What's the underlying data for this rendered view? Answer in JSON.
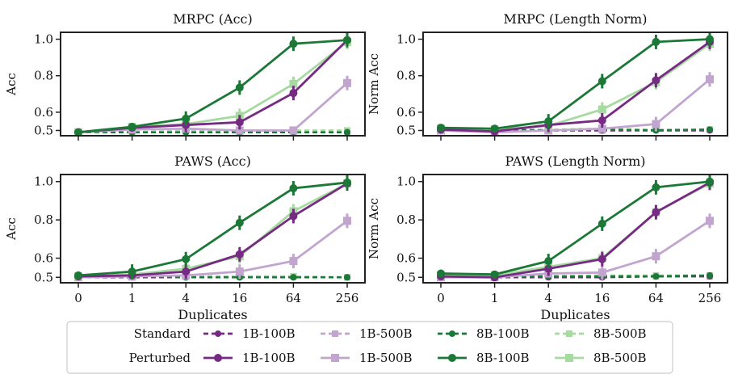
{
  "figure": {
    "x_label": "Duplicates",
    "legend": {
      "row_labels": [
        "Standard",
        "Perturbed"
      ],
      "entries": [
        {
          "label": "1B-100B",
          "color": "#762a83",
          "marker": "circle"
        },
        {
          "label": "1B-500B",
          "color": "#c2a5cf",
          "marker": "square"
        },
        {
          "label": "8B-100B",
          "color": "#1b7837",
          "marker": "circle"
        },
        {
          "label": "8B-500B",
          "color": "#a6dba0",
          "marker": "square"
        }
      ]
    }
  },
  "chart_data": [
    {
      "type": "line",
      "title": "MRPC (Acc)",
      "ylabel": "Acc",
      "xlabel": "",
      "x": [
        "0",
        "1",
        "4",
        "16",
        "64",
        "256"
      ],
      "ylim": [
        0.48,
        1.02
      ],
      "yticks": [
        0.5,
        0.6,
        0.8,
        1.0
      ],
      "yticklabels": [
        "0.5",
        "0.6",
        "0.8",
        "1.0"
      ],
      "series": [
        {
          "name": "1B-100B",
          "style": "Standard",
          "values": [
            0.49,
            0.49,
            0.49,
            0.49,
            0.49,
            0.49
          ]
        },
        {
          "name": "1B-500B",
          "style": "Standard",
          "values": [
            0.49,
            0.49,
            0.495,
            0.49,
            0.495,
            0.495
          ]
        },
        {
          "name": "8B-100B",
          "style": "Standard",
          "values": [
            0.49,
            0.49,
            0.49,
            0.49,
            0.49,
            0.49
          ]
        },
        {
          "name": "8B-500B",
          "style": "Standard",
          "values": [
            0.49,
            0.49,
            0.5,
            0.5,
            0.5,
            0.5
          ]
        },
        {
          "name": "1B-100B",
          "style": "Perturbed",
          "values": [
            0.49,
            0.515,
            0.53,
            0.545,
            0.705,
            0.995
          ]
        },
        {
          "name": "1B-500B",
          "style": "Perturbed",
          "values": [
            0.49,
            0.505,
            0.51,
            0.5,
            0.5,
            0.76
          ]
        },
        {
          "name": "8B-100B",
          "style": "Perturbed",
          "values": [
            0.49,
            0.52,
            0.565,
            0.735,
            0.975,
            0.995
          ]
        },
        {
          "name": "8B-500B",
          "style": "Perturbed",
          "values": [
            0.49,
            0.52,
            0.535,
            0.58,
            0.755,
            0.985
          ]
        }
      ]
    },
    {
      "type": "line",
      "title": "MRPC (Length Norm)",
      "ylabel": "Norm Acc",
      "xlabel": "",
      "x": [
        "0",
        "1",
        "4",
        "16",
        "64",
        "256"
      ],
      "ylim": [
        0.48,
        1.02
      ],
      "yticks": [
        0.5,
        0.6,
        0.8,
        1.0
      ],
      "yticklabels": [
        "0.5",
        "0.6",
        "0.8",
        "1.0"
      ],
      "series": [
        {
          "name": "1B-100B",
          "style": "Standard",
          "values": [
            0.5,
            0.5,
            0.5,
            0.5,
            0.5,
            0.5
          ]
        },
        {
          "name": "1B-500B",
          "style": "Standard",
          "values": [
            0.5,
            0.495,
            0.5,
            0.5,
            0.505,
            0.505
          ]
        },
        {
          "name": "8B-100B",
          "style": "Standard",
          "values": [
            0.505,
            0.5,
            0.5,
            0.505,
            0.5,
            0.505
          ]
        },
        {
          "name": "8B-500B",
          "style": "Standard",
          "values": [
            0.51,
            0.505,
            0.505,
            0.51,
            0.505,
            0.505
          ]
        },
        {
          "name": "1B-100B",
          "style": "Perturbed",
          "values": [
            0.505,
            0.495,
            0.53,
            0.555,
            0.775,
            0.985
          ]
        },
        {
          "name": "1B-500B",
          "style": "Perturbed",
          "values": [
            0.5,
            0.49,
            0.5,
            0.51,
            0.535,
            0.78
          ]
        },
        {
          "name": "8B-100B",
          "style": "Perturbed",
          "values": [
            0.515,
            0.51,
            0.55,
            0.77,
            0.985,
            1.0
          ]
        },
        {
          "name": "8B-500B",
          "style": "Perturbed",
          "values": [
            0.51,
            0.505,
            0.525,
            0.615,
            0.765,
            0.975
          ]
        }
      ]
    },
    {
      "type": "line",
      "title": "PAWS (Acc)",
      "ylabel": "Acc",
      "xlabel": "Duplicates",
      "x": [
        "0",
        "1",
        "4",
        "16",
        "64",
        "256"
      ],
      "ylim": [
        0.48,
        1.02
      ],
      "yticks": [
        0.5,
        0.6,
        0.8,
        1.0
      ],
      "yticklabels": [
        "0.5",
        "0.6",
        "0.8",
        "1.0"
      ],
      "series": [
        {
          "name": "1B-100B",
          "style": "Standard",
          "values": [
            0.5,
            0.5,
            0.5,
            0.5,
            0.5,
            0.5
          ]
        },
        {
          "name": "1B-500B",
          "style": "Standard",
          "values": [
            0.5,
            0.5,
            0.505,
            0.505,
            0.505,
            0.5
          ]
        },
        {
          "name": "8B-100B",
          "style": "Standard",
          "values": [
            0.5,
            0.505,
            0.5,
            0.5,
            0.5,
            0.5
          ]
        },
        {
          "name": "8B-500B",
          "style": "Standard",
          "values": [
            0.5,
            0.505,
            0.505,
            0.505,
            0.505,
            0.5
          ]
        },
        {
          "name": "1B-100B",
          "style": "Perturbed",
          "values": [
            0.505,
            0.51,
            0.53,
            0.62,
            0.82,
            0.99
          ]
        },
        {
          "name": "1B-500B",
          "style": "Perturbed",
          "values": [
            0.5,
            0.505,
            0.51,
            0.53,
            0.585,
            0.795
          ]
        },
        {
          "name": "8B-100B",
          "style": "Perturbed",
          "values": [
            0.51,
            0.53,
            0.595,
            0.785,
            0.965,
            0.995
          ]
        },
        {
          "name": "8B-500B",
          "style": "Perturbed",
          "values": [
            0.505,
            0.515,
            0.545,
            0.61,
            0.845,
            0.99
          ]
        }
      ]
    },
    {
      "type": "line",
      "title": "PAWS (Length Norm)",
      "ylabel": "Norm Acc",
      "xlabel": "Duplicates",
      "x": [
        "0",
        "1",
        "4",
        "16",
        "64",
        "256"
      ],
      "ylim": [
        0.48,
        1.02
      ],
      "yticks": [
        0.5,
        0.6,
        0.8,
        1.0
      ],
      "yticklabels": [
        "0.5",
        "0.6",
        "0.8",
        "1.0"
      ],
      "series": [
        {
          "name": "1B-100B",
          "style": "Standard",
          "values": [
            0.505,
            0.5,
            0.5,
            0.5,
            0.505,
            0.505
          ]
        },
        {
          "name": "1B-500B",
          "style": "Standard",
          "values": [
            0.5,
            0.5,
            0.505,
            0.505,
            0.505,
            0.505
          ]
        },
        {
          "name": "8B-100B",
          "style": "Standard",
          "values": [
            0.51,
            0.505,
            0.505,
            0.505,
            0.505,
            0.51
          ]
        },
        {
          "name": "8B-500B",
          "style": "Standard",
          "values": [
            0.51,
            0.505,
            0.505,
            0.51,
            0.51,
            0.51
          ]
        },
        {
          "name": "1B-100B",
          "style": "Perturbed",
          "values": [
            0.505,
            0.5,
            0.545,
            0.595,
            0.84,
            0.995
          ]
        },
        {
          "name": "1B-500B",
          "style": "Perturbed",
          "values": [
            0.5,
            0.5,
            0.52,
            0.525,
            0.61,
            0.795
          ]
        },
        {
          "name": "8B-100B",
          "style": "Perturbed",
          "values": [
            0.52,
            0.515,
            0.585,
            0.78,
            0.97,
            1.0
          ]
        },
        {
          "name": "8B-500B",
          "style": "Perturbed",
          "values": [
            0.51,
            0.51,
            0.555,
            0.6,
            0.84,
            0.99
          ]
        }
      ]
    }
  ]
}
